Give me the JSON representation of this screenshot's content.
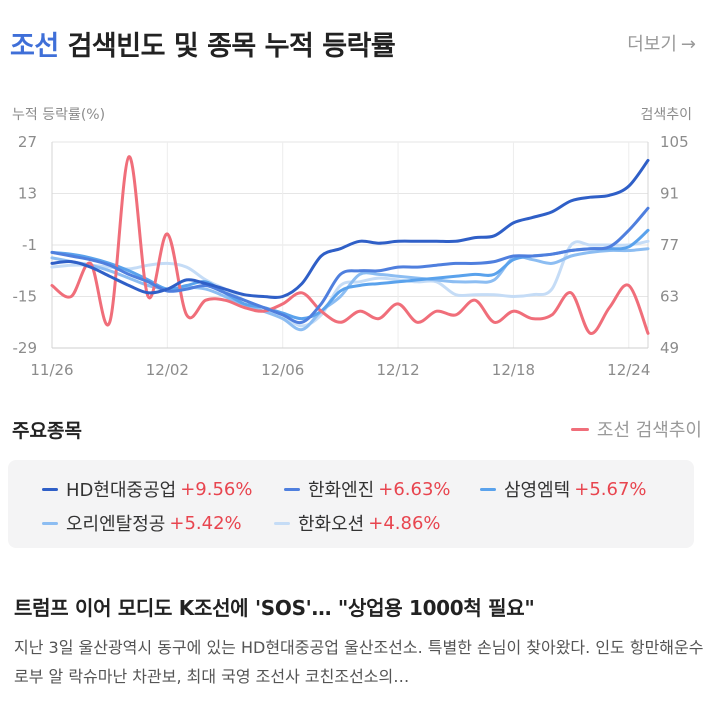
{
  "header": {
    "accent": "조선",
    "title_rest": " 검색빈도 및 종목 누적 등락률",
    "more_label": "더보기",
    "more_arrow": "→"
  },
  "colors": {
    "accent": "#3f6fd8",
    "search": "#f06e7a",
    "positive": "#e8454f"
  },
  "chart_data": {
    "type": "line",
    "y_left_label": "누적 등락률(%)",
    "y_right_label": "검색추이",
    "y_left_ticks": [
      "27",
      "13",
      "-1",
      "-15",
      "-29"
    ],
    "y_left_range": [
      -29,
      27
    ],
    "y_right_ticks": [
      "105",
      "91",
      "77",
      "63",
      "49"
    ],
    "y_right_range": [
      49,
      105
    ],
    "x_tick_labels": [
      "11/26",
      "12/02",
      "12/06",
      "12/12",
      "12/18",
      "12/24"
    ],
    "x_tick_positions": [
      0,
      6,
      12,
      18,
      24,
      30
    ],
    "x_count": 32,
    "grid": true,
    "series": [
      {
        "name": "HD현대중공업",
        "color": "#2f5fc7",
        "axis": "left",
        "values": [
          -6,
          -5.5,
          -7,
          -9.5,
          -12,
          -14,
          -13,
          -10.5,
          -11.5,
          -13,
          -14.5,
          -15,
          -15,
          -11.5,
          -4,
          -2,
          0,
          -0.5,
          0,
          0,
          0,
          0,
          1,
          1.5,
          5,
          6.5,
          8,
          11,
          12,
          12.5,
          15,
          22
        ]
      },
      {
        "name": "한화엔진",
        "color": "#4f7fde",
        "axis": "left",
        "values": [
          -3,
          -4,
          -5,
          -6.5,
          -9,
          -11,
          -13.5,
          -13,
          -12,
          -14,
          -16,
          -18,
          -20,
          -22,
          -17,
          -9,
          -8,
          -8,
          -7,
          -7,
          -6.5,
          -6,
          -6,
          -5.5,
          -4,
          -4,
          -3.5,
          -2.5,
          -2,
          -1.5,
          3,
          9
        ]
      },
      {
        "name": "삼영엠텍",
        "color": "#5aa2ec",
        "axis": "left",
        "values": [
          -3,
          -3.5,
          -4.5,
          -6,
          -8,
          -10.5,
          -13,
          -12,
          -11,
          -14,
          -17,
          -18,
          -19.5,
          -21,
          -19,
          -13.5,
          -12,
          -11.5,
          -11,
          -10.5,
          -10,
          -9.5,
          -9,
          -9,
          -5,
          -4,
          -3.5,
          -2.5,
          -2,
          -2,
          -1.5,
          3
        ]
      },
      {
        "name": "오리엔탈정공",
        "color": "#8cbdf2",
        "axis": "left",
        "values": [
          -4.5,
          -5.5,
          -6.5,
          -8,
          -10,
          -12,
          -13,
          -12.5,
          -13,
          -15,
          -17.5,
          -19,
          -21,
          -24,
          -19,
          -15,
          -9,
          -9,
          -9.5,
          -10,
          -10.5,
          -11,
          -11,
          -10.5,
          -4.5,
          -5,
          -6,
          -4,
          -3,
          -2.5,
          -2.5,
          -2
        ]
      },
      {
        "name": "한화오션",
        "color": "#c5dcf6",
        "axis": "left",
        "values": [
          -7,
          -6.5,
          -6.5,
          -7,
          -7.5,
          -6.5,
          -6,
          -7,
          -10.5,
          -13,
          -16,
          -18,
          -20,
          -23,
          -20,
          -12,
          -11,
          -10,
          -10.5,
          -11,
          -11,
          -14.5,
          -14.5,
          -14.5,
          -15,
          -14.5,
          -13,
          -1,
          -1,
          -1,
          -1,
          0
        ]
      },
      {
        "name": "조선 검색추이",
        "color": "#f06e7a",
        "axis": "right",
        "values": [
          66,
          63,
          72,
          56,
          101,
          63,
          80,
          58,
          62,
          62,
          60,
          59,
          61,
          64,
          59,
          56,
          59,
          57,
          61,
          56,
          59,
          58,
          62,
          56,
          59,
          57,
          58,
          64,
          53,
          60,
          66,
          53
        ]
      }
    ]
  },
  "section": {
    "title": "주요종목",
    "search_legend": "조선 검색추이"
  },
  "stocks": [
    {
      "name": "HD현대중공업",
      "pct": "+9.56%",
      "color": "#2f5fc7"
    },
    {
      "name": "한화엔진",
      "pct": "+6.63%",
      "color": "#4f7fde"
    },
    {
      "name": "삼영엠텍",
      "pct": "+5.67%",
      "color": "#5aa2ec"
    },
    {
      "name": "오리엔탈정공",
      "pct": "+5.42%",
      "color": "#8cbdf2"
    },
    {
      "name": "한화오션",
      "pct": "+4.86%",
      "color": "#c5dcf6"
    }
  ],
  "news": {
    "title": "트럼프 이어 모디도 K조선에 'SOS'… \"상업용 1000척 필요\"",
    "body": "지난 3일 울산광역시 동구에 있는 HD현대중공업 울산조선소. 특별한 손님이 찾아왔다. 인도 항만해운수로부 알 락슈마난 차관보, 최대 국영 조선사 코친조선소의…"
  }
}
